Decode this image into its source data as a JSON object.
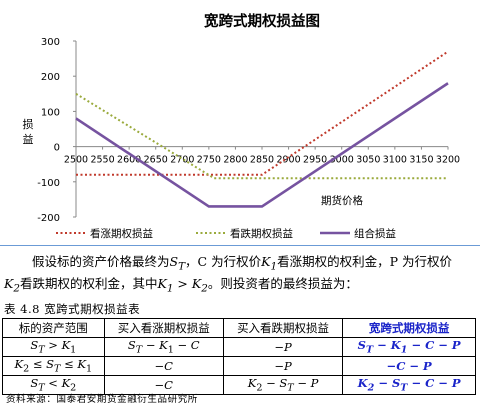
{
  "chart_data": {
    "type": "line",
    "title": "宽跨式期权损益图",
    "xlabel": "期货价格",
    "ylabel": "损益",
    "xlim": [
      2500,
      3200
    ],
    "ylim": [
      -200,
      300
    ],
    "x_ticks": [
      "2500",
      "2550",
      "2600",
      "2650",
      "2700",
      "2750",
      "2800",
      "2850",
      "2900",
      "2950",
      "3000",
      "3050",
      "3100",
      "3150",
      "3200"
    ],
    "y_ticks": [
      "300",
      "200",
      "100",
      "0",
      "-100",
      "-200"
    ],
    "legend_position": "bottom",
    "series": [
      {
        "name": "看涨期权损益",
        "color": "#c0392b",
        "dash": "2,2.5",
        "x": [
          2500,
          2850,
          3200
        ],
        "y": [
          -80,
          -80,
          270
        ]
      },
      {
        "name": "看跌期权损益",
        "color": "#9aaa3c",
        "dash": "2,2.5",
        "x": [
          2500,
          2760,
          3200
        ],
        "y": [
          150,
          -90,
          -90
        ]
      },
      {
        "name": "组合损益",
        "color": "#7653a0",
        "dash": "",
        "x": [
          2500,
          2750,
          2850,
          3200
        ],
        "y": [
          80,
          -170,
          -170,
          180
        ]
      }
    ]
  },
  "text": {
    "para1_a": "假设标的资产价格最终为",
    "para1_b": "S",
    "para1_b_sub": "T",
    "para1_c": "，C 为行权价",
    "para1_d": "K",
    "para1_d_sub": "1",
    "para1_e": "看涨期权的权利金，P 为行权价",
    "para2_a": "K",
    "para2_a_sub": "2",
    "para2_b": "看跌期权的权利金，其中",
    "para2_c": "K",
    "para2_c_sub": "1",
    "para2_d": " > ",
    "para2_e": "K",
    "para2_e_sub": "2",
    "para2_f": "。则投资者的最终损益为：",
    "caption": "表 4.8 宽跨式期权损益表",
    "source": "资料来源：国泰君安期货金融衍生品研究所"
  },
  "table": {
    "headers": [
      "标的资产范围",
      "买入看涨期权损益",
      "买入看跌期权损益",
      "宽跨式期权损益"
    ],
    "rows": [
      [
        "S_T > K_1",
        "S_T − K_1 − C",
        "−P",
        "S_T − K_1 − C − P"
      ],
      [
        "K_2 ≤ S_T ≤ K_1",
        "−C",
        "−P",
        "−C − P"
      ],
      [
        "S_T < K_2",
        "−C",
        "K_2 − S_T − P",
        "K_2 − S_T − C − P"
      ]
    ]
  }
}
